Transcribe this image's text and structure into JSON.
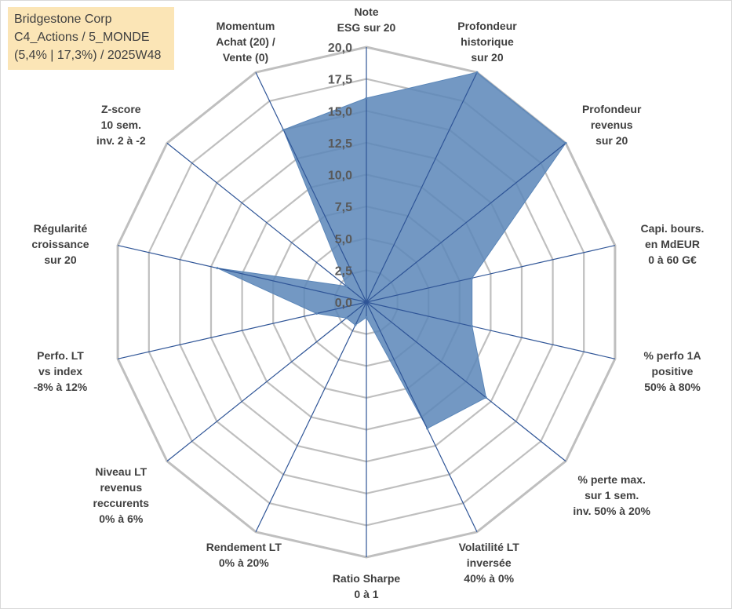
{
  "info": {
    "line1": "Bridgestone Corp",
    "line2": "C4_Actions / 5_MONDE",
    "line3": "(5,4% | 17,3%) / 2025W48"
  },
  "colors": {
    "fill": "#5b86b8",
    "stroke": "#2f5597",
    "grid": "#bfbfbf",
    "spoke": "#2f5597",
    "infoBox": "#fbe5b6"
  },
  "chart_data": {
    "type": "radar",
    "title": "",
    "rmin": 0,
    "rmax": 20,
    "ticks": [
      "0,0",
      "2,5",
      "5,0",
      "7,5",
      "10,0",
      "12,5",
      "15,0",
      "17,5",
      "20,0"
    ],
    "categories": [
      [
        "Note",
        "ESG sur 20"
      ],
      [
        "Profondeur",
        "historique",
        "sur 20"
      ],
      [
        "Profondeur",
        "revenus",
        "sur 20"
      ],
      [
        "Capi. bours.",
        "en MdEUR",
        "0 à 60 G€"
      ],
      [
        "% perfo 1A",
        "positive",
        "50% à 80%"
      ],
      [
        "% perte max.",
        "sur 1 sem.",
        "inv. 50% à 20%"
      ],
      [
        "Volatilité LT",
        "inversée",
        "40% à 0%"
      ],
      [
        "Ratio Sharpe",
        "0 à 1"
      ],
      [
        "Rendement LT",
        "0% à 20%"
      ],
      [
        "Niveau LT",
        "revenus",
        "reccurents",
        "0% à 6%"
      ],
      [
        "Perfo. LT",
        "vs index",
        "-8% à 12%"
      ],
      [
        "Régularité",
        "croissance",
        "sur 20"
      ],
      [
        "Z-score",
        "10 sem.",
        "inv. 2 à -2"
      ],
      [
        "Momentum",
        "Achat (20) /",
        "Vente (0)"
      ]
    ],
    "series": [
      {
        "name": "Bridgestone Corp",
        "values": [
          16.0,
          20.0,
          20.0,
          8.5,
          8.5,
          12.0,
          11.0,
          1.2,
          2.0,
          2.0,
          4.0,
          12.0,
          2.0,
          15.0
        ]
      }
    ]
  }
}
